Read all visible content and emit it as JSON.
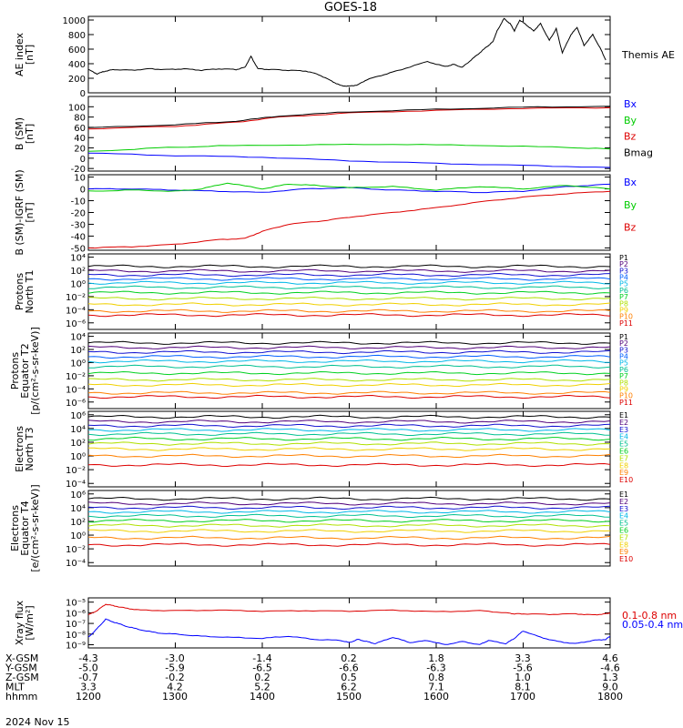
{
  "title": "GOES-18",
  "date": "2024 Nov 15",
  "colors": {
    "black": "#000000",
    "blue": "#0000ff",
    "green": "#00cc00",
    "red": "#dd0000"
  },
  "ephemeris": {
    "rows": [
      {
        "label": "X-GSM",
        "values": [
          "-4.3",
          "-3.0",
          "-1.4",
          "0.2",
          "1.8",
          "3.3",
          "4.6"
        ]
      },
      {
        "label": "Y-GSM",
        "values": [
          "-5.0",
          "-5.9",
          "-6.5",
          "-6.6",
          "-6.3",
          "-5.6",
          "-4.6"
        ]
      },
      {
        "label": "Z-GSM",
        "values": [
          "-0.7",
          "-0.2",
          "0.2",
          "0.5",
          "0.8",
          "1.0",
          "1.3"
        ]
      },
      {
        "label": "MLT",
        "values": [
          "3.3",
          "4.2",
          "5.2",
          "6.2",
          "7.1",
          "8.1",
          "9.0"
        ]
      },
      {
        "label": "hhmm",
        "values": [
          "1200",
          "1300",
          "1400",
          "1500",
          "1600",
          "1700",
          "1800"
        ]
      }
    ]
  },
  "chart_data": [
    {
      "type": "line",
      "ylabel": [
        "AE index",
        "[nT]"
      ],
      "yscale": "linear",
      "ylim": [
        0,
        1050
      ],
      "yticks": [
        0,
        200,
        400,
        600,
        800,
        1000
      ],
      "ytick_labels": [
        "0",
        "200",
        "400",
        "600",
        "800",
        "1000"
      ],
      "xlim_hours": [
        12,
        18
      ],
      "series": [
        {
          "name": "Themis AE",
          "color": "#000000",
          "x": [
            12.0,
            12.1,
            12.2,
            12.3,
            12.5,
            12.7,
            12.9,
            13.1,
            13.3,
            13.5,
            13.7,
            13.8,
            13.87,
            13.95,
            14.1,
            14.3,
            14.5,
            14.65,
            14.8,
            14.9,
            15.0,
            15.1,
            15.2,
            15.4,
            15.6,
            15.9,
            16.1,
            16.2,
            16.3,
            16.4,
            16.5,
            16.6,
            16.65,
            16.7,
            16.78,
            16.85,
            16.9,
            16.96,
            17.05,
            17.12,
            17.2,
            17.3,
            17.38,
            17.45,
            17.55,
            17.62,
            17.7,
            17.8,
            17.9,
            17.95
          ],
          "y": [
            320,
            260,
            300,
            320,
            310,
            330,
            320,
            330,
            310,
            330,
            320,
            350,
            500,
            330,
            320,
            310,
            300,
            250,
            160,
            100,
            90,
            110,
            180,
            250,
            320,
            430,
            360,
            390,
            350,
            450,
            550,
            650,
            700,
            850,
            1020,
            950,
            850,
            1000,
            920,
            850,
            950,
            720,
            880,
            550,
            800,
            900,
            650,
            800,
            580,
            450
          ]
        }
      ],
      "legend": "right"
    },
    {
      "type": "line",
      "ylabel": [
        "B (SM)",
        "[nT]"
      ],
      "yscale": "linear",
      "ylim": [
        -25,
        120
      ],
      "yticks": [
        -20,
        0,
        20,
        40,
        60,
        80,
        100,
        120
      ],
      "ytick_labels": [
        "-20",
        "0",
        "20",
        "40",
        "60",
        "80",
        "100",
        ""
      ],
      "xlim_hours": [
        12,
        18
      ],
      "series": [
        {
          "name": "Bx",
          "color": "#0000ff",
          "x": [
            12,
            13,
            14,
            15,
            16,
            17,
            18
          ],
          "y": [
            10,
            5,
            2,
            -5,
            -10,
            -14,
            -18
          ]
        },
        {
          "name": "By",
          "color": "#00cc00",
          "x": [
            12,
            12.8,
            13.5,
            14.5,
            15.5,
            16.5,
            17.5,
            18
          ],
          "y": [
            13,
            20,
            24,
            26,
            27,
            25,
            21,
            18
          ]
        },
        {
          "name": "Bz",
          "color": "#dd0000",
          "x": [
            12,
            13,
            13.7,
            14.2,
            15,
            16,
            17,
            18
          ],
          "y": [
            57,
            62,
            70,
            80,
            88,
            93,
            97,
            98
          ]
        },
        {
          "name": "Bmag",
          "color": "#000000",
          "x": [
            12,
            13,
            13.7,
            14.2,
            15,
            16,
            17,
            18
          ],
          "y": [
            59,
            65,
            72,
            82,
            90,
            95,
            99,
            101
          ]
        }
      ],
      "legend": "right"
    },
    {
      "type": "line",
      "ylabel": [
        "B (SM)-IGRF (SM)",
        "[nT]"
      ],
      "yscale": "linear",
      "ylim": [
        -52,
        12
      ],
      "yticks": [
        -50,
        -40,
        -30,
        -20,
        -10,
        0,
        10
      ],
      "ytick_labels": [
        "-50",
        "-40",
        "-30",
        "-20",
        "-10",
        "0",
        "10"
      ],
      "xlim_hours": [
        12,
        18
      ],
      "series": [
        {
          "name": "Bx",
          "color": "#0000ff",
          "x": [
            12,
            12.5,
            13,
            13.5,
            14,
            14.5,
            15,
            15.5,
            16,
            16.5,
            17,
            17.5,
            18
          ],
          "y": [
            0,
            0,
            -1,
            -2,
            -3,
            0,
            1,
            -1,
            -2,
            -3,
            -2,
            2,
            4
          ]
        },
        {
          "name": "By",
          "color": "#00cc00",
          "x": [
            12,
            12.5,
            13,
            13.3,
            13.6,
            14,
            14.3,
            14.6,
            15,
            15.5,
            16,
            16.5,
            17,
            17.5,
            18
          ],
          "y": [
            -2,
            -1,
            -2,
            0,
            5,
            0,
            4,
            3,
            1,
            2,
            -1,
            2,
            0,
            3,
            0
          ]
        },
        {
          "name": "Bz",
          "color": "#dd0000",
          "x": [
            12,
            12.5,
            13,
            13.5,
            13.8,
            14,
            14.3,
            14.7,
            15,
            15.5,
            16,
            16.5,
            17,
            17.5,
            18
          ],
          "y": [
            -50,
            -49,
            -47,
            -43,
            -42,
            -36,
            -30,
            -27,
            -24,
            -20,
            -16,
            -11,
            -7,
            -4,
            -2
          ]
        }
      ],
      "legend": "right"
    },
    {
      "type": "line",
      "ylabel": [
        "Protons",
        "North T1"
      ],
      "yscale": "log",
      "yticks": [
        -6,
        -4,
        -2,
        0,
        2,
        4
      ],
      "ytick_labels": [
        "10⁻⁶",
        "10⁻⁴",
        "10⁻²",
        "10⁰",
        "10²",
        "10⁴"
      ],
      "ylim_log10": [
        -7,
        4.5
      ],
      "xlim_hours": [
        12,
        18
      ],
      "series": [
        {
          "name": "P1",
          "color": "#000000",
          "y_log10": 2.6
        },
        {
          "name": "P2",
          "color": "#50007a",
          "y_log10": 1.9
        },
        {
          "name": "P3",
          "color": "#1010d0",
          "y_log10": 1.3
        },
        {
          "name": "P4",
          "color": "#0060ff",
          "y_log10": 0.7
        },
        {
          "name": "P5",
          "color": "#00b8e8",
          "y_log10": 0.1
        },
        {
          "name": "P6",
          "color": "#00c090",
          "y_log10": -0.6
        },
        {
          "name": "P7",
          "color": "#00d020",
          "y_log10": -1.4
        },
        {
          "name": "P8",
          "color": "#b0e000",
          "y_log10": -2.3
        },
        {
          "name": "P9",
          "color": "#f0d000",
          "y_log10": -3.2
        },
        {
          "name": "P10",
          "color": "#ff8000",
          "y_log10": -4.2
        },
        {
          "name": "P11",
          "color": "#dd0000",
          "y_log10": -4.8
        }
      ],
      "legend": "right"
    },
    {
      "type": "line",
      "ylabel": [
        "Protons",
        "Equator T2",
        "[p/(cm²-s-sr-keV)]"
      ],
      "yscale": "log",
      "yticks": [
        -6,
        -4,
        -2,
        0,
        2,
        4
      ],
      "ytick_labels": [
        "10⁻⁶",
        "10⁻⁴",
        "10⁻²",
        "10⁰",
        "10²",
        "10⁴"
      ],
      "ylim_log10": [
        -7,
        4.5
      ],
      "xlim_hours": [
        12,
        18
      ],
      "series": [
        {
          "name": "P1",
          "color": "#000000",
          "y_log10": 3.0
        },
        {
          "name": "P2",
          "color": "#50007a",
          "y_log10": 2.3
        },
        {
          "name": "P3",
          "color": "#1010d0",
          "y_log10": 1.6
        },
        {
          "name": "P4",
          "color": "#0060ff",
          "y_log10": 0.9
        },
        {
          "name": "P5",
          "color": "#00b8e8",
          "y_log10": 0.2
        },
        {
          "name": "P6",
          "color": "#00c090",
          "y_log10": -0.6
        },
        {
          "name": "P7",
          "color": "#00d020",
          "y_log10": -1.6
        },
        {
          "name": "P8",
          "color": "#b0e000",
          "y_log10": -2.6
        },
        {
          "name": "P9",
          "color": "#f0d000",
          "y_log10": -3.4
        },
        {
          "name": "P10",
          "color": "#ff8000",
          "y_log10": -4.6
        },
        {
          "name": "P11",
          "color": "#dd0000",
          "y_log10": -5.2
        }
      ],
      "legend": "right"
    },
    {
      "type": "line",
      "ylabel": [
        "Electrons",
        "North T3"
      ],
      "yscale": "log",
      "yticks": [
        -4,
        -2,
        0,
        2,
        4,
        6
      ],
      "ytick_labels": [
        "10⁻⁴",
        "10⁻²",
        "10⁰",
        "10²",
        "10⁴",
        "10⁶"
      ],
      "ylim_log10": [
        -4.5,
        6.5
      ],
      "xlim_hours": [
        12,
        18
      ],
      "series": [
        {
          "name": "E1",
          "color": "#000000",
          "y_log10": 5.7
        },
        {
          "name": "E2",
          "color": "#50007a",
          "y_log10": 5.0
        },
        {
          "name": "E3",
          "color": "#1010d0",
          "y_log10": 4.4
        },
        {
          "name": "E4",
          "color": "#00b8e8",
          "y_log10": 3.8
        },
        {
          "name": "E5",
          "color": "#00c090",
          "y_log10": 3.2
        },
        {
          "name": "E6",
          "color": "#00d020",
          "y_log10": 2.5
        },
        {
          "name": "E7",
          "color": "#b0e000",
          "y_log10": 1.8
        },
        {
          "name": "E8",
          "color": "#f0d000",
          "y_log10": 1.0
        },
        {
          "name": "E9",
          "color": "#ff8000",
          "y_log10": 0.0
        },
        {
          "name": "E10",
          "color": "#dd0000",
          "y_log10": -1.3
        }
      ],
      "legend": "right"
    },
    {
      "type": "line",
      "ylabel": [
        "Electrons",
        "Equator T4",
        "[e/(cm²-s-sr-keV)]"
      ],
      "yscale": "log",
      "yticks": [
        -4,
        -2,
        0,
        2,
        4,
        6
      ],
      "ytick_labels": [
        "10⁻⁴",
        "10⁻²",
        "10⁰",
        "10²",
        "10⁴",
        "10⁶"
      ],
      "ylim_log10": [
        -4.5,
        6.5
      ],
      "xlim_hours": [
        12,
        18
      ],
      "series": [
        {
          "name": "E1",
          "color": "#000000",
          "y_log10": 5.3
        },
        {
          "name": "E2",
          "color": "#50007a",
          "y_log10": 4.6
        },
        {
          "name": "E3",
          "color": "#1010d0",
          "y_log10": 4.0
        },
        {
          "name": "E4",
          "color": "#00b8e8",
          "y_log10": 3.4
        },
        {
          "name": "E5",
          "color": "#00c090",
          "y_log10": 2.8
        },
        {
          "name": "E6",
          "color": "#00d020",
          "y_log10": 2.1
        },
        {
          "name": "E7",
          "color": "#b0e000",
          "y_log10": 1.4
        },
        {
          "name": "E8",
          "color": "#f0d000",
          "y_log10": 0.6
        },
        {
          "name": "E9",
          "color": "#ff8000",
          "y_log10": -0.4
        },
        {
          "name": "E10",
          "color": "#dd0000",
          "y_log10": -1.4
        }
      ],
      "legend": "right"
    },
    {
      "type": "line",
      "ylabel": [
        "Xray flux",
        "[W/m²]"
      ],
      "yscale": "log",
      "yticks": [
        -9,
        -8,
        -7,
        -6,
        -5
      ],
      "ytick_labels": [
        "10⁻⁹",
        "10⁻⁸",
        "10⁻⁷",
        "10⁻⁶",
        "10⁻⁵"
      ],
      "ylim_log10": [
        -9.3,
        -4.6
      ],
      "xlim_hours": [
        12,
        18
      ],
      "series": [
        {
          "name": "0.1-0.8 nm",
          "color": "#dd0000",
          "x": [
            12.0,
            12.1,
            12.2,
            12.3,
            12.45,
            12.6,
            13.0,
            13.5,
            14.0,
            14.5,
            15.0,
            15.5,
            16.0,
            16.5,
            16.8,
            16.9,
            17.0,
            17.3,
            17.6,
            17.8,
            17.95,
            18.0
          ],
          "y_log10": [
            -6.2,
            -5.8,
            -5.2,
            -5.35,
            -5.6,
            -5.75,
            -5.8,
            -5.75,
            -5.85,
            -5.8,
            -5.85,
            -5.75,
            -5.9,
            -5.8,
            -6.0,
            -6.1,
            -6.1,
            -6.15,
            -6.1,
            -6.2,
            -6.1,
            -6.0
          ]
        },
        {
          "name": "0.05-0.4 nm",
          "color": "#0000ff",
          "x": [
            12.0,
            12.1,
            12.2,
            12.3,
            12.45,
            12.6,
            12.8,
            13.0,
            13.3,
            13.6,
            14.0,
            14.3,
            14.6,
            14.9,
            15.0,
            15.1,
            15.2,
            15.3,
            15.5,
            15.7,
            15.9,
            16.1,
            16.3,
            16.5,
            16.6,
            16.8,
            16.9,
            17.0,
            17.2,
            17.4,
            17.6,
            17.8,
            17.95,
            18.0
          ],
          "y_log10": [
            -8.3,
            -7.5,
            -6.6,
            -6.9,
            -7.3,
            -7.6,
            -7.9,
            -8.0,
            -8.2,
            -8.3,
            -8.4,
            -8.2,
            -8.5,
            -8.6,
            -8.8,
            -8.5,
            -8.7,
            -8.9,
            -8.3,
            -8.8,
            -8.6,
            -9.0,
            -8.7,
            -9.0,
            -8.6,
            -8.9,
            -8.4,
            -7.7,
            -8.3,
            -8.7,
            -8.9,
            -8.6,
            -8.5,
            -8.2
          ]
        }
      ],
      "legend": "right"
    }
  ]
}
